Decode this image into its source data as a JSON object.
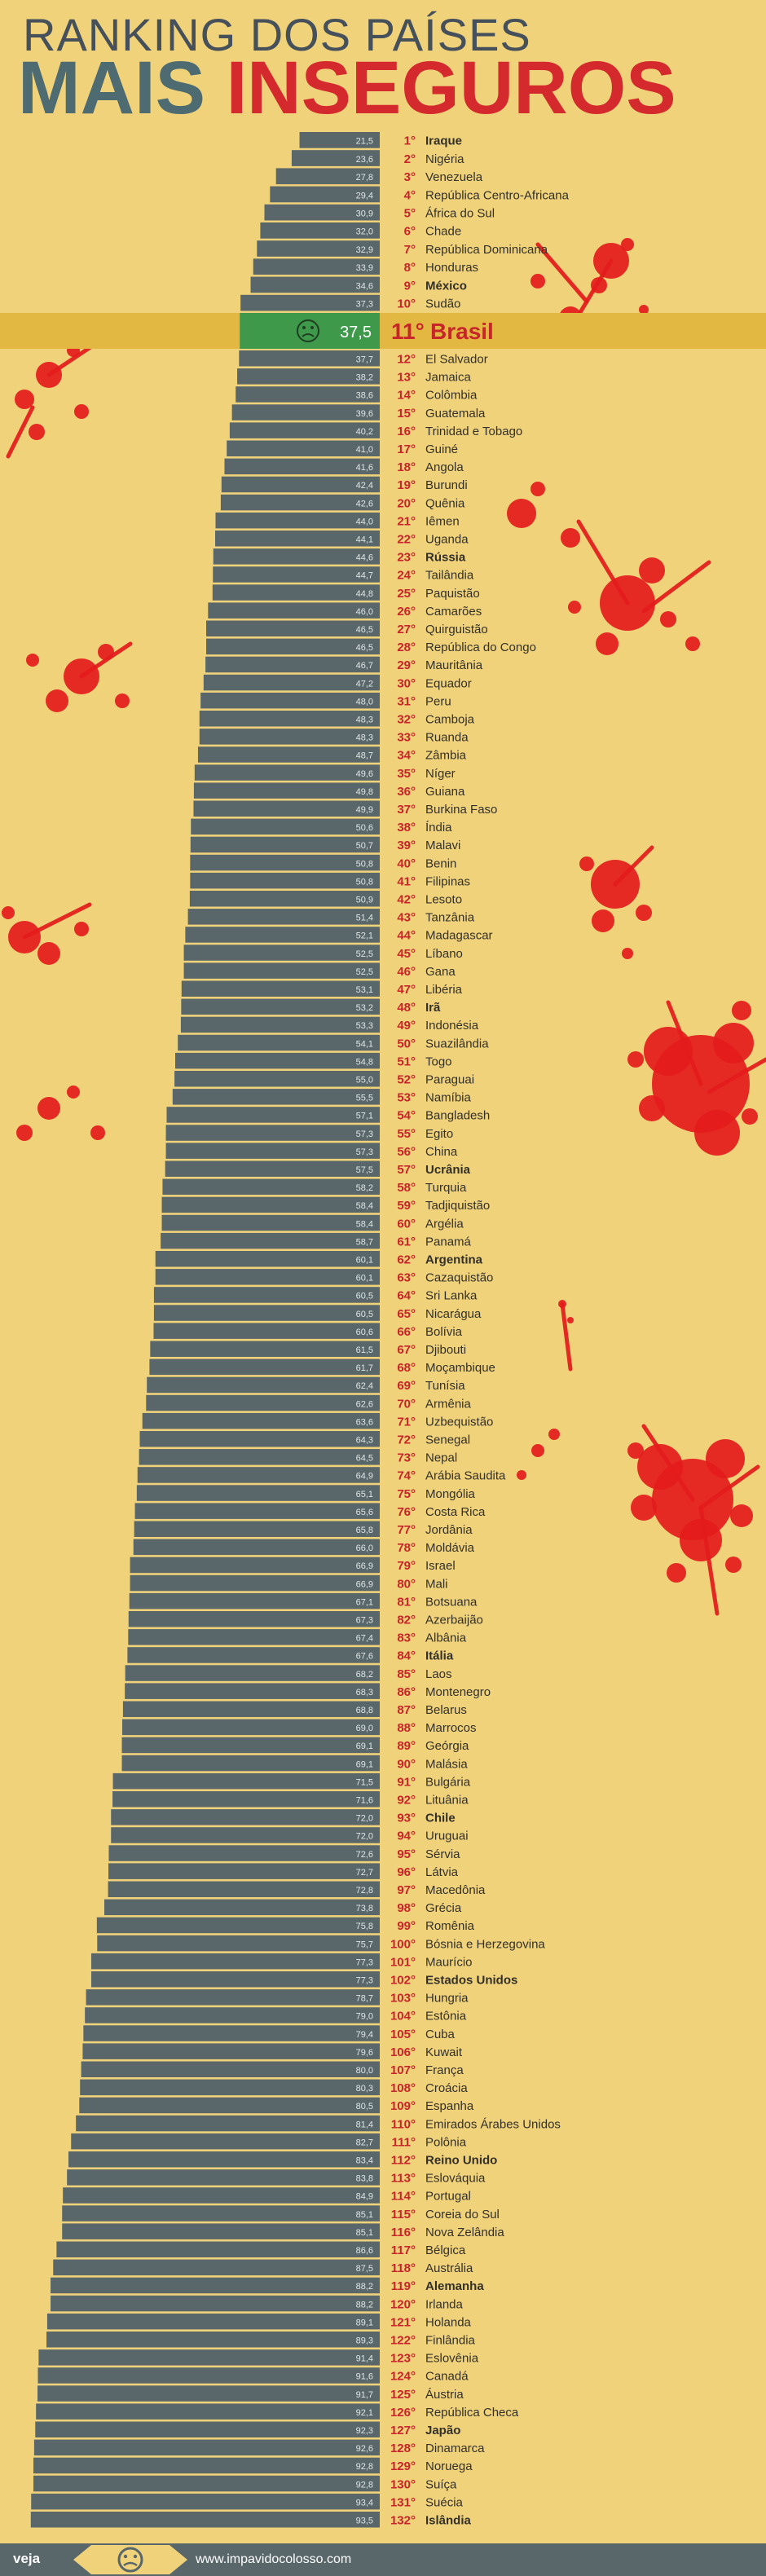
{
  "header": {
    "title_line1": "RANKING DOS PAÍSES",
    "title_line2_a": "MAIS ",
    "title_line2_b": "INSEGUROS"
  },
  "footer": {
    "brand": "veja",
    "url": "www.impavidocolosso.com"
  },
  "colors": {
    "background": "#f0d27a",
    "bar": "#59676b",
    "highlight_band": "#e2b843",
    "highlight_bar": "#3e9a4a",
    "rank_red": "#c8242a",
    "splatter": "#e41b1b"
  },
  "icons": {
    "highlight": "sad-face-icon",
    "footer": "sad-face-icon"
  },
  "chart_data": {
    "type": "bar",
    "orientation": "horizontal",
    "highlight_index": 10,
    "categories": [
      "Iraque",
      "Nigéria",
      "Venezuela",
      "República Centro-Africana",
      "África do Sul",
      "Chade",
      "República Dominicana",
      "Honduras",
      "México",
      "Sudão",
      "Brasil",
      "El Salvador",
      "Jamaica",
      "Colômbia",
      "Guatemala",
      "Trinidad e Tobago",
      "Guiné",
      "Angola",
      "Burundi",
      "Quênia",
      "Iêmen",
      "Uganda",
      "Rússia",
      "Tailândia",
      "Paquistão",
      "Camarões",
      "Quirguistão",
      "República do Congo",
      "Mauritânia",
      "Equador",
      "Peru",
      "Camboja",
      "Ruanda",
      "Zâmbia",
      "Níger",
      "Guiana",
      "Burkina Faso",
      "Índia",
      "Malavi",
      "Benin",
      "Filipinas",
      "Lesoto",
      "Tanzânia",
      "Madagascar",
      "Líbano",
      "Gana",
      "Libéria",
      "Irã",
      "Indonésia",
      "Suazilândia",
      "Togo",
      "Paraguai",
      "Namíbia",
      "Bangladesh",
      "Egito",
      "China",
      "Ucrânia",
      "Turquia",
      "Tadjiquistão",
      "Argélia",
      "Panamá",
      "Argentina",
      "Cazaquistão",
      "Sri Lanka",
      "Nicarágua",
      "Bolívia",
      "Djibouti",
      "Moçambique",
      "Tunísia",
      "Armênia",
      "Uzbequistão",
      "Senegal",
      "Nepal",
      "Arábia Saudita",
      "Mongólia",
      "Costa Rica",
      "Jordânia",
      "Moldávia",
      "Israel",
      "Mali",
      "Botsuana",
      "Azerbaijão",
      "Albânia",
      "Itália",
      "Laos",
      "Montenegro",
      "Belarus",
      "Marrocos",
      "Geórgia",
      "Malásia",
      "Bulgária",
      "Lituânia",
      "Chile",
      "Uruguai",
      "Sérvia",
      "Látvia",
      "Macedônia",
      "Grécia",
      "Romênia",
      "Bósnia e Herzegovina",
      "Maurício",
      "Estados Unidos",
      "Hungria",
      "Estônia",
      "Cuba",
      "Kuwait",
      "França",
      "Croácia",
      "Espanha",
      "Emirados Árabes Unidos",
      "Polônia",
      "Reino Unido",
      "Eslováquia",
      "Portugal",
      "Coreia do Sul",
      "Nova Zelândia",
      "Bélgica",
      "Austrália",
      "Alemanha",
      "Irlanda",
      "Holanda",
      "Finlândia",
      "Eslovênia",
      "Canadá",
      "Áustria",
      "República Checa",
      "Japão",
      "Dinamarca",
      "Noruega",
      "Suíça",
      "Suécia",
      "Islândia"
    ],
    "ranks": [
      "1°",
      "2°",
      "3°",
      "4°",
      "5°",
      "6°",
      "7°",
      "8°",
      "9°",
      "10°",
      "11°",
      "12°",
      "13°",
      "14°",
      "15°",
      "16°",
      "17°",
      "18°",
      "19°",
      "20°",
      "21°",
      "22°",
      "23°",
      "24°",
      "25°",
      "26°",
      "27°",
      "28°",
      "29°",
      "30°",
      "31°",
      "32°",
      "33°",
      "34°",
      "35°",
      "36°",
      "37°",
      "38°",
      "39°",
      "40°",
      "41°",
      "42°",
      "43°",
      "44°",
      "45°",
      "46°",
      "47°",
      "48°",
      "49°",
      "50°",
      "51°",
      "52°",
      "53°",
      "54°",
      "55°",
      "56°",
      "57°",
      "58°",
      "59°",
      "60°",
      "61°",
      "62°",
      "63°",
      "64°",
      "65°",
      "66°",
      "67°",
      "68°",
      "69°",
      "70°",
      "71°",
      "72°",
      "73°",
      "74°",
      "75°",
      "76°",
      "77°",
      "78°",
      "79°",
      "80°",
      "81°",
      "82°",
      "83°",
      "84°",
      "85°",
      "86°",
      "87°",
      "88°",
      "89°",
      "90°",
      "91°",
      "92°",
      "93°",
      "94°",
      "95°",
      "96°",
      "97°",
      "98°",
      "99°",
      "100°",
      "101°",
      "102°",
      "103°",
      "104°",
      "105°",
      "106°",
      "107°",
      "108°",
      "109°",
      "110°",
      "111°",
      "112°",
      "113°",
      "114°",
      "115°",
      "116°",
      "117°",
      "118°",
      "119°",
      "120°",
      "121°",
      "122°",
      "123°",
      "124°",
      "125°",
      "126°",
      "127°",
      "128°",
      "129°",
      "130°",
      "131°",
      "132°"
    ],
    "values": [
      21.5,
      23.6,
      27.8,
      29.4,
      30.9,
      32.0,
      32.9,
      33.9,
      34.6,
      37.3,
      37.5,
      37.7,
      38.2,
      38.6,
      39.6,
      40.2,
      41.0,
      41.6,
      42.4,
      42.6,
      44.0,
      44.1,
      44.6,
      44.7,
      44.8,
      46.0,
      46.5,
      46.5,
      46.7,
      47.2,
      48.0,
      48.3,
      48.3,
      48.7,
      49.6,
      49.8,
      49.9,
      50.6,
      50.7,
      50.8,
      50.8,
      50.9,
      51.4,
      52.1,
      52.5,
      52.5,
      53.1,
      53.2,
      53.3,
      54.1,
      54.8,
      55.0,
      55.5,
      57.1,
      57.3,
      57.3,
      57.5,
      58.2,
      58.4,
      58.4,
      58.7,
      60.1,
      60.1,
      60.5,
      60.5,
      60.6,
      61.5,
      61.7,
      62.4,
      62.6,
      63.6,
      64.3,
      64.5,
      64.9,
      65.1,
      65.6,
      65.8,
      66.0,
      66.9,
      66.9,
      67.1,
      67.3,
      67.4,
      67.6,
      68.2,
      68.3,
      68.8,
      69.0,
      69.1,
      69.1,
      71.5,
      71.6,
      72.0,
      72.0,
      72.6,
      72.7,
      72.8,
      73.8,
      75.8,
      75.7,
      77.3,
      77.3,
      78.7,
      79.0,
      79.4,
      79.6,
      80.0,
      80.3,
      80.5,
      81.4,
      82.7,
      83.4,
      83.8,
      84.9,
      85.1,
      85.1,
      86.6,
      87.5,
      88.2,
      88.2,
      89.1,
      89.3,
      91.4,
      91.6,
      91.7,
      92.1,
      92.3,
      92.6,
      92.8,
      92.8,
      93.4,
      93.5
    ],
    "bold": [
      "Iraque",
      "México",
      "Brasil",
      "Rússia",
      "Irã",
      "Ucrânia",
      "Argentina",
      "Itália",
      "Chile",
      "Estados Unidos",
      "Reino Unido",
      "Alemanha",
      "Japão",
      "Islândia"
    ],
    "xlim": [
      0,
      100
    ]
  }
}
